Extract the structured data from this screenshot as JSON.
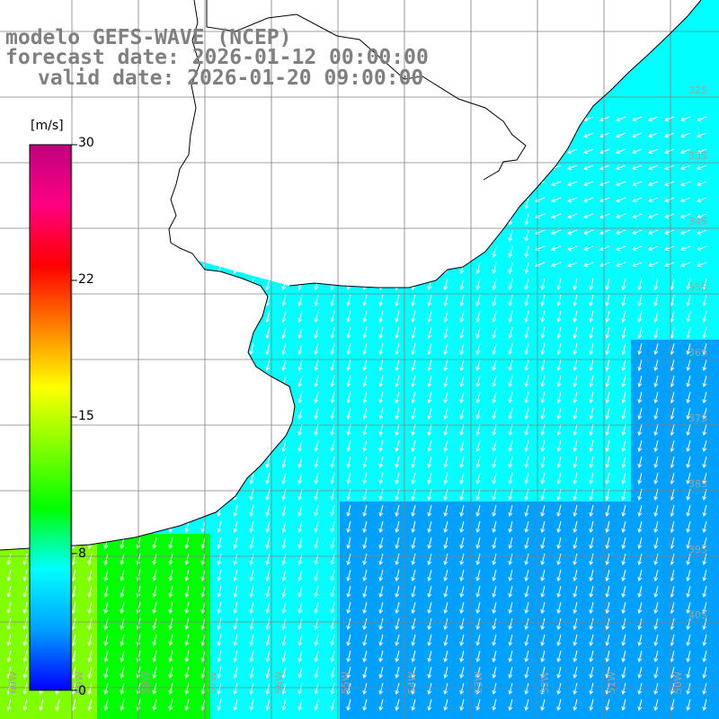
{
  "titles": {
    "model": "modelo GEFS-WAVE (NCEP)",
    "forecast": "forecast date: 2026-01-12 00:00:00",
    "valid": "valid date: 2026-01-20 09:00:00"
  },
  "colorbar": {
    "unit": "[m/s]",
    "ticks": [
      "30",
      "22",
      "15",
      "8",
      "0"
    ],
    "min": 0,
    "max": 30,
    "colors": [
      "#0000ff",
      "#00a0ff",
      "#00ffff",
      "#00ff00",
      "#80ff00",
      "#ffff00",
      "#ff8000",
      "#ff0000",
      "#ff0080",
      "#c00080"
    ]
  },
  "map": {
    "lat_labels": [
      "32S",
      "33S",
      "34S",
      "35S",
      "36S",
      "37S",
      "38S",
      "39S",
      "40S"
    ],
    "lon_labels": [
      "60W",
      "59W",
      "58W",
      "57W",
      "56W",
      "55W",
      "54W",
      "53W",
      "52W",
      "51W",
      "50W"
    ],
    "land_color": "#ffffff",
    "arrow_color": "#ffffff",
    "grid_color": "#808080"
  }
}
